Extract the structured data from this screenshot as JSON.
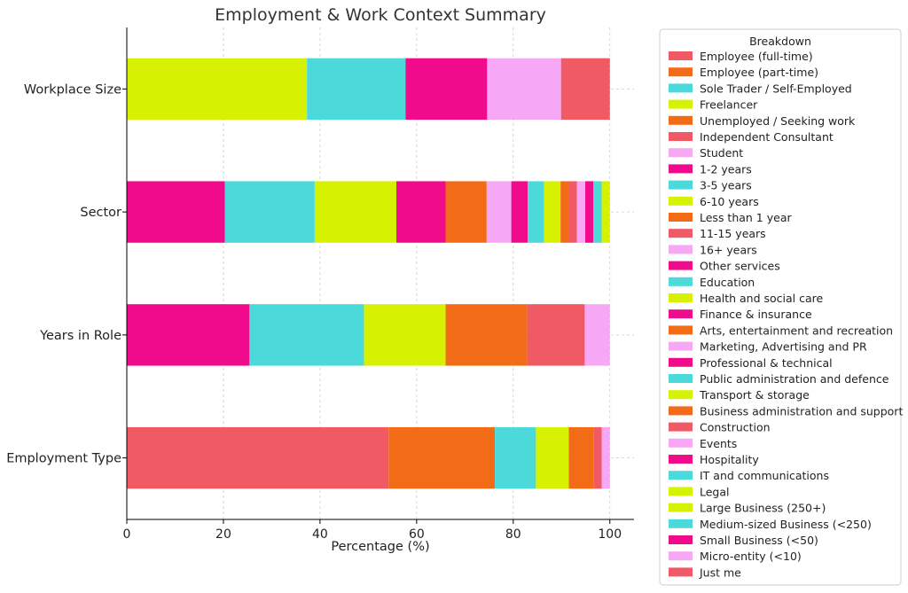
{
  "chart_data": {
    "type": "bar",
    "orientation": "horizontal",
    "stacked": true,
    "title": "Employment & Work Context Summary",
    "xlabel": "Percentage (%)",
    "ylabel": "",
    "xlim": [
      0,
      105
    ],
    "xticks": [
      0,
      20,
      40,
      60,
      80,
      100
    ],
    "grid": true,
    "legend": {
      "title": "Breakdown",
      "placement": "right"
    },
    "categories": [
      "Workplace Size",
      "Sector",
      "Years in Role",
      "Employment Type"
    ],
    "legend_entries": [
      {
        "name": "Employee (full-time)",
        "color": "#F05A64"
      },
      {
        "name": "Employee (part-time)",
        "color": "#F26B16"
      },
      {
        "name": "Sole Trader / Self-Employed",
        "color": "#4BD9DA"
      },
      {
        "name": "Freelancer",
        "color": "#D6F202"
      },
      {
        "name": "Unemployed / Seeking work",
        "color": "#F26B16"
      },
      {
        "name": "Independent Consultant",
        "color": "#F05A64"
      },
      {
        "name": "Student",
        "color": "#F7A8F5"
      },
      {
        "name": "1-2 years",
        "color": "#F00A8C"
      },
      {
        "name": "3-5 years",
        "color": "#4BD9DA"
      },
      {
        "name": "6-10 years",
        "color": "#D6F202"
      },
      {
        "name": "Less than 1 year",
        "color": "#F26B16"
      },
      {
        "name": "11-15 years",
        "color": "#F05A64"
      },
      {
        "name": "16+ years",
        "color": "#F7A8F5"
      },
      {
        "name": "Other services",
        "color": "#F00A8C"
      },
      {
        "name": "Education",
        "color": "#4BD9DA"
      },
      {
        "name": "Health and social care",
        "color": "#D6F202"
      },
      {
        "name": "Finance & insurance",
        "color": "#F00A8C"
      },
      {
        "name": "Arts, entertainment and recreation",
        "color": "#F26B16"
      },
      {
        "name": "Marketing, Advertising and PR",
        "color": "#F7A8F5"
      },
      {
        "name": "Professional & technical",
        "color": "#F00A8C"
      },
      {
        "name": "Public administration and defence",
        "color": "#4BD9DA"
      },
      {
        "name": "Transport & storage",
        "color": "#D6F202"
      },
      {
        "name": "Business administration and support",
        "color": "#F26B16"
      },
      {
        "name": "Construction",
        "color": "#F05A64"
      },
      {
        "name": "Events",
        "color": "#F7A8F5"
      },
      {
        "name": "Hospitality",
        "color": "#F00A8C"
      },
      {
        "name": "IT and communications",
        "color": "#4BD9DA"
      },
      {
        "name": "Legal",
        "color": "#D6F202"
      },
      {
        "name": "Large Business (250+)",
        "color": "#D6F202"
      },
      {
        "name": "Medium-sized Business (<250)",
        "color": "#4BD9DA"
      },
      {
        "name": "Small Business (<50)",
        "color": "#F00A8C"
      },
      {
        "name": "Micro-entity (<10)",
        "color": "#F7A8F5"
      },
      {
        "name": "Just me",
        "color": "#F05A64"
      }
    ],
    "stacks": {
      "Workplace Size": [
        {
          "name": "Large Business (250+)",
          "value": 37.3,
          "color": "#D6F202"
        },
        {
          "name": "Medium-sized Business (<250)",
          "value": 20.4,
          "color": "#4BD9DA"
        },
        {
          "name": "Small Business (<50)",
          "value": 16.9,
          "color": "#F00A8C"
        },
        {
          "name": "Micro-entity (<10)",
          "value": 15.3,
          "color": "#F7A8F5"
        },
        {
          "name": "Just me",
          "value": 10.1,
          "color": "#F05A64"
        }
      ],
      "Sector": [
        {
          "name": "Other services",
          "value": 20.3,
          "color": "#F00A8C"
        },
        {
          "name": "Education",
          "value": 18.6,
          "color": "#4BD9DA"
        },
        {
          "name": "Health and social care",
          "value": 16.9,
          "color": "#D6F202"
        },
        {
          "name": "Finance & insurance",
          "value": 10.2,
          "color": "#F00A8C"
        },
        {
          "name": "Arts, entertainment and recreation",
          "value": 8.5,
          "color": "#F26B16"
        },
        {
          "name": "Marketing, Advertising and PR",
          "value": 5.1,
          "color": "#F7A8F5"
        },
        {
          "name": "Professional & technical",
          "value": 3.4,
          "color": "#F00A8C"
        },
        {
          "name": "Public administration and defence",
          "value": 3.4,
          "color": "#4BD9DA"
        },
        {
          "name": "Transport & storage",
          "value": 3.4,
          "color": "#D6F202"
        },
        {
          "name": "Business administration and support",
          "value": 1.7,
          "color": "#F26B16"
        },
        {
          "name": "Construction",
          "value": 1.7,
          "color": "#F05A64"
        },
        {
          "name": "Events",
          "value": 1.7,
          "color": "#F7A8F5"
        },
        {
          "name": "Hospitality",
          "value": 1.7,
          "color": "#F00A8C"
        },
        {
          "name": "IT and communications",
          "value": 1.7,
          "color": "#4BD9DA"
        },
        {
          "name": "Legal",
          "value": 1.7,
          "color": "#D6F202"
        }
      ],
      "Years in Role": [
        {
          "name": "1-2 years",
          "value": 25.4,
          "color": "#F00A8C"
        },
        {
          "name": "3-5 years",
          "value": 23.7,
          "color": "#4BD9DA"
        },
        {
          "name": "6-10 years",
          "value": 16.9,
          "color": "#D6F202"
        },
        {
          "name": "Less than 1 year",
          "value": 16.9,
          "color": "#F26B16"
        },
        {
          "name": "11-15 years",
          "value": 11.9,
          "color": "#F05A64"
        },
        {
          "name": "16+ years",
          "value": 5.2,
          "color": "#F7A8F5"
        }
      ],
      "Employment Type": [
        {
          "name": "Employee (full-time)",
          "value": 54.2,
          "color": "#F05A64"
        },
        {
          "name": "Employee (part-time)",
          "value": 22.0,
          "color": "#F26B16"
        },
        {
          "name": "Sole Trader / Self-Employed",
          "value": 8.5,
          "color": "#4BD9DA"
        },
        {
          "name": "Freelancer",
          "value": 6.8,
          "color": "#D6F202"
        },
        {
          "name": "Unemployed / Seeking work",
          "value": 5.1,
          "color": "#F26B16"
        },
        {
          "name": "Independent Consultant",
          "value": 1.7,
          "color": "#F05A64"
        },
        {
          "name": "Student",
          "value": 1.7,
          "color": "#F7A8F5"
        }
      ]
    }
  }
}
